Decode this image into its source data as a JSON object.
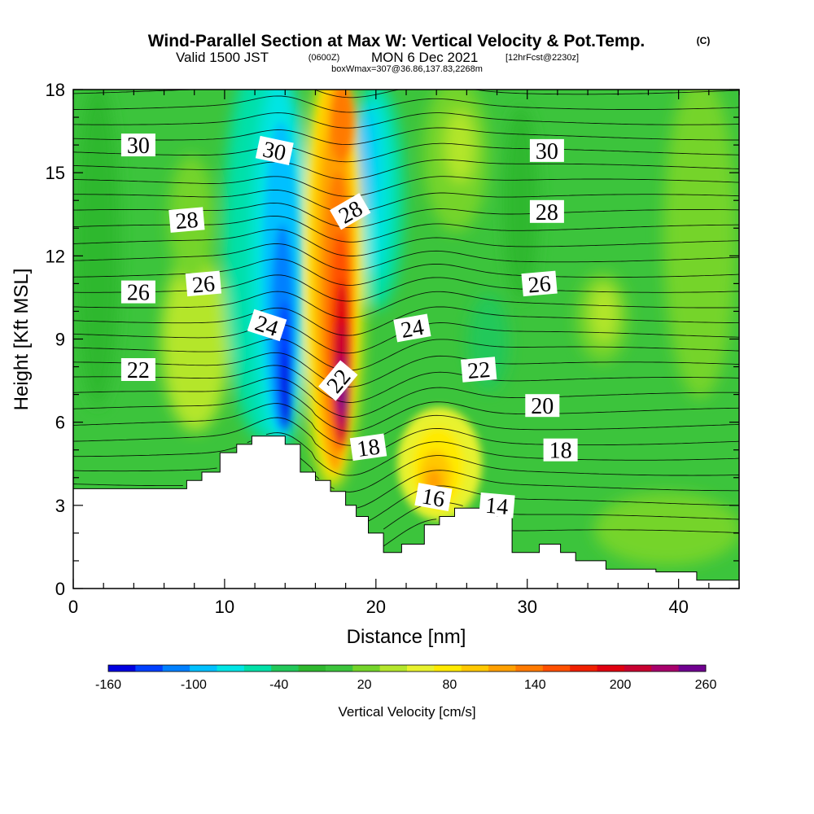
{
  "title": {
    "main": "Wind-Parallel Section at Max W: Vertical Velocity & Pot.Temp.",
    "copyright": "(C)",
    "valid_a": "Valid 1500 JST",
    "valid_b": "(0600Z)",
    "valid_c": "MON 6 Dec 2021",
    "valid_d": "[12hrFcst@2230z]",
    "box": "boxWmax=307@36.86,137.83,2268m"
  },
  "chart_data": {
    "type": "heatmap",
    "xlabel": "Distance [nm]",
    "ylabel": "Height [Kft MSL]",
    "xlim": [
      0,
      44
    ],
    "ylim": [
      0,
      18
    ],
    "x_ticks": [
      "0",
      "10",
      "20",
      "30",
      "40"
    ],
    "y_ticks": [
      "0",
      "3",
      "6",
      "9",
      "12",
      "15",
      "18"
    ],
    "grid": false,
    "terrain": [
      [
        0,
        3.6
      ],
      [
        7.5,
        3.6
      ],
      [
        7.5,
        3.9
      ],
      [
        8.5,
        3.9
      ],
      [
        8.5,
        4.2
      ],
      [
        9.7,
        4.2
      ],
      [
        9.7,
        4.9
      ],
      [
        10.8,
        4.9
      ],
      [
        10.8,
        5.2
      ],
      [
        11.8,
        5.2
      ],
      [
        11.8,
        5.5
      ],
      [
        14.0,
        5.5
      ],
      [
        14.0,
        5.2
      ],
      [
        15.0,
        5.2
      ],
      [
        15.0,
        4.2
      ],
      [
        16.0,
        4.2
      ],
      [
        16.0,
        3.9
      ],
      [
        17.0,
        3.9
      ],
      [
        17.0,
        3.5
      ],
      [
        18.0,
        3.5
      ],
      [
        18.0,
        3.0
      ],
      [
        18.7,
        3.0
      ],
      [
        18.7,
        2.6
      ],
      [
        19.5,
        2.6
      ],
      [
        19.5,
        2.0
      ],
      [
        20.5,
        2.0
      ],
      [
        20.5,
        1.3
      ],
      [
        21.7,
        1.3
      ],
      [
        21.7,
        1.6
      ],
      [
        23.2,
        1.6
      ],
      [
        23.2,
        2.3
      ],
      [
        24.2,
        2.3
      ],
      [
        24.2,
        2.6
      ],
      [
        25.2,
        2.6
      ],
      [
        25.2,
        2.9
      ],
      [
        28.0,
        2.9
      ],
      [
        28.0,
        2.6
      ],
      [
        29.0,
        2.6
      ],
      [
        29.0,
        1.3
      ],
      [
        30.8,
        1.3
      ],
      [
        30.8,
        1.6
      ],
      [
        32.2,
        1.6
      ],
      [
        32.2,
        1.3
      ],
      [
        33.2,
        1.3
      ],
      [
        33.2,
        1.0
      ],
      [
        35.2,
        1.0
      ],
      [
        35.2,
        0.7
      ],
      [
        38.5,
        0.7
      ],
      [
        38.5,
        0.6
      ],
      [
        41.2,
        0.6
      ],
      [
        41.2,
        0.3
      ],
      [
        44,
        0.3
      ]
    ],
    "vertical_velocity_cms": {
      "units": "cm/s",
      "levels": [
        -160,
        -140,
        -120,
        -100,
        -80,
        -60,
        -40,
        -20,
        0,
        20,
        40,
        60,
        80,
        100,
        120,
        140,
        160,
        180,
        200,
        220,
        240,
        260
      ],
      "colors": [
        "#0000e0",
        "#0040ff",
        "#0080ff",
        "#00c0ff",
        "#00e5e5",
        "#00e0a8",
        "#22c85a",
        "#2eb82e",
        "#3cc43c",
        "#74d42a",
        "#b4e62c",
        "#e8f22e",
        "#ffea00",
        "#ffc800",
        "#ffa000",
        "#ff7a00",
        "#ff5000",
        "#f02000",
        "#e00010",
        "#c80030",
        "#a8006c",
        "#700090"
      ],
      "features": [
        {
          "name": "downdraft core",
          "x": 14.0,
          "y": 7.5,
          "peak": -160
        },
        {
          "name": "updraft core",
          "x": 18.0,
          "y": 8.5,
          "peak": 260
        },
        {
          "name": "secondary updraft",
          "x": 24.5,
          "y": 4.8,
          "peak": 100
        }
      ]
    },
    "potential_temperature_contours": [
      "14",
      "16",
      "18",
      "18",
      "20",
      "22",
      "22",
      "22",
      "24",
      "24",
      "26",
      "26",
      "26",
      "28",
      "28",
      "28",
      "30",
      "30",
      "30"
    ]
  },
  "colorbar": {
    "label": "Vertical Velocity [cm/s]",
    "tick_labels": [
      "-160",
      "-100",
      "-40",
      "20",
      "80",
      "140",
      "200",
      "260"
    ]
  },
  "contour_labels": [
    {
      "text": "30",
      "x": 4.3,
      "y": 16.0,
      "rot": 0
    },
    {
      "text": "30",
      "x": 13.3,
      "y": 15.8,
      "rot": 12
    },
    {
      "text": "30",
      "x": 31.3,
      "y": 15.8,
      "rot": 0
    },
    {
      "text": "28",
      "x": 7.5,
      "y": 13.3,
      "rot": -5
    },
    {
      "text": "28",
      "x": 18.3,
      "y": 13.6,
      "rot": -30
    },
    {
      "text": "28",
      "x": 31.3,
      "y": 13.6,
      "rot": 0
    },
    {
      "text": "26",
      "x": 4.3,
      "y": 10.7,
      "rot": 0
    },
    {
      "text": "26",
      "x": 8.6,
      "y": 11.0,
      "rot": -5
    },
    {
      "text": "26",
      "x": 30.8,
      "y": 11.0,
      "rot": -5
    },
    {
      "text": "24",
      "x": 12.8,
      "y": 9.5,
      "rot": 18
    },
    {
      "text": "24",
      "x": 22.4,
      "y": 9.4,
      "rot": -10
    },
    {
      "text": "22",
      "x": 4.3,
      "y": 7.9,
      "rot": 0
    },
    {
      "text": "22",
      "x": 17.5,
      "y": 7.5,
      "rot": -50
    },
    {
      "text": "22",
      "x": 26.8,
      "y": 7.9,
      "rot": -5
    },
    {
      "text": "20",
      "x": 31.0,
      "y": 6.6,
      "rot": 0
    },
    {
      "text": "18",
      "x": 19.5,
      "y": 5.1,
      "rot": -8
    },
    {
      "text": "18",
      "x": 32.2,
      "y": 5.0,
      "rot": 0
    },
    {
      "text": "16",
      "x": 23.8,
      "y": 3.3,
      "rot": 10
    },
    {
      "text": "14",
      "x": 28.0,
      "y": 3.0,
      "rot": 5
    }
  ]
}
